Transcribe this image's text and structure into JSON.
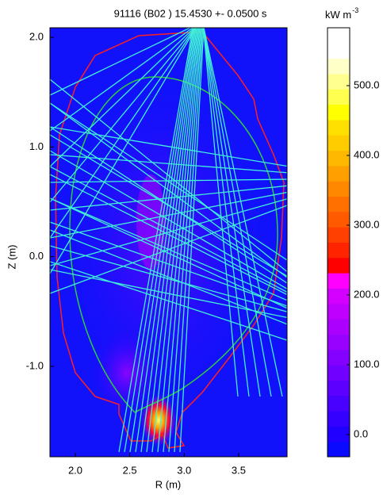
{
  "chart_data": {
    "type": "heatmap",
    "title": "91116 (B02 ) 15.4530 +- 0.0500 s",
    "x_label": "R (m)",
    "y_label": "Z (m)",
    "xlim": [
      1.767,
      3.945
    ],
    "ylim": [
      -1.824,
      2.087
    ],
    "xticks": [
      {
        "value": 2,
        "label": "2.0"
      },
      2.5,
      {
        "value": 3,
        "label": "3.0"
      },
      3.5
    ],
    "yticks": [
      {
        "value": -1,
        "label": "-1.0"
      },
      {
        "value": 0,
        "label": "0.0"
      },
      {
        "value": 1,
        "label": "1.0"
      },
      {
        "value": 2,
        "label": "2.0"
      }
    ],
    "background_color": "#1212fa",
    "colorbar": {
      "label": "kW m",
      "label_superscript": "-3",
      "clim": [
        -32,
        583
      ],
      "ticks": [
        {
          "value": 0,
          "label": "0.0"
        },
        {
          "value": 100,
          "label": "100.0"
        },
        {
          "value": 200,
          "label": "200.0"
        },
        {
          "value": 300,
          "label": "300.0"
        },
        {
          "value": 400,
          "label": "400.0"
        },
        {
          "value": 500,
          "label": "500.0"
        }
      ],
      "colors": [
        "#0a0aff",
        "#2000ff",
        "#3400ff",
        "#4800ff",
        "#5c00ff",
        "#7000ff",
        "#8400ff",
        "#9800ff",
        "#ac00ff",
        "#c000ff",
        "#d400ff",
        "#ff00ff",
        "#ff0000",
        "#ff2400",
        "#ff4000",
        "#ff5a00",
        "#ff7000",
        "#ff8800",
        "#ffa000",
        "#ffb800",
        "#ffcc00",
        "#ffe000",
        "#ffff00",
        "#ffff50",
        "#ffff90",
        "#ffffc8",
        "#ffffff",
        "#ffffff"
      ]
    }
  }
}
